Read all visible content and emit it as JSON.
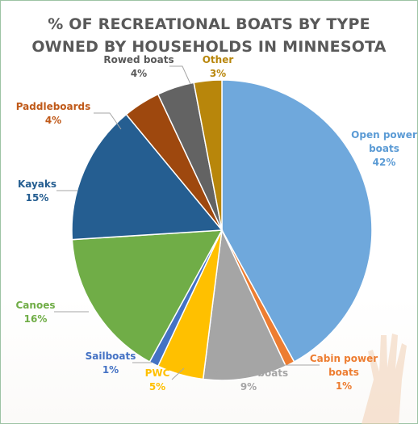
{
  "chart_data": {
    "type": "pie",
    "title_lines": [
      "% OF RECREATIONAL BOATS BY TYPE",
      "OWNED BY HOUSEHOLDS IN MINNESOTA"
    ],
    "slices": [
      {
        "name": "Open power boats",
        "label_lines": [
          "Open power",
          "boats"
        ],
        "value": 42,
        "value_label": "42%",
        "color": "#6fa8dc",
        "label_color": "#5b9bd5"
      },
      {
        "name": "Cabin power boats",
        "label_lines": [
          "Cabin power",
          "boats"
        ],
        "value": 1,
        "value_label": "1%",
        "color": "#ed7d31",
        "label_color": "#ed7d31"
      },
      {
        "name": "Pontoon boats",
        "label_lines": [
          "Pontoon boats"
        ],
        "value": 9,
        "value_label": "9%",
        "color": "#a5a5a5",
        "label_color": "#a5a5a5"
      },
      {
        "name": "PWC",
        "label_lines": [
          "PWC"
        ],
        "value": 5,
        "value_label": "5%",
        "color": "#ffc000",
        "label_color": "#ffc000"
      },
      {
        "name": "Sailboats",
        "label_lines": [
          "Sailboats"
        ],
        "value": 1,
        "value_label": "1%",
        "color": "#4472c4",
        "label_color": "#4472c4"
      },
      {
        "name": "Canoes",
        "label_lines": [
          "Canoes"
        ],
        "value": 16,
        "value_label": "16%",
        "color": "#70ad47",
        "label_color": "#70ad47"
      },
      {
        "name": "Kayaks",
        "label_lines": [
          "Kayaks"
        ],
        "value": 15,
        "value_label": "15%",
        "color": "#255e91",
        "label_color": "#255e91"
      },
      {
        "name": "Paddleboards",
        "label_lines": [
          "Paddleboards"
        ],
        "value": 4,
        "value_label": "4%",
        "color": "#9e480e",
        "label_color": "#c05a1a"
      },
      {
        "name": "Rowed boats",
        "label_lines": [
          "Rowed boats"
        ],
        "value": 4,
        "value_label": "4%",
        "color": "#636363",
        "label_color": "#595959"
      },
      {
        "name": "Other",
        "label_lines": [
          "Other"
        ],
        "value": 3,
        "value_label": "3%",
        "color": "#b8860b",
        "label_color": "#b8860b"
      }
    ]
  }
}
